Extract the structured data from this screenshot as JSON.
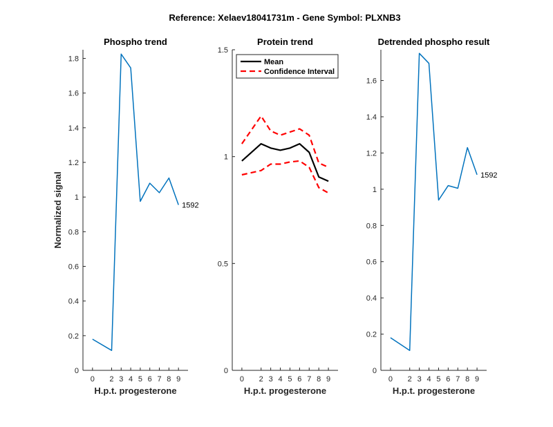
{
  "figure": {
    "suptitle": "Reference:  Xelaev18041731m - Gene Symbol:  PLXNB3"
  },
  "colors": {
    "phospho_line": "#0072BD",
    "mean_line": "#000000",
    "ci_line": "#FF0000",
    "axis": "#262626"
  },
  "chart_data": [
    {
      "type": "line",
      "title": "Phospho trend",
      "xlabel": "H.p.t. progesterone",
      "ylabel": "Normalized signal",
      "x": [
        0,
        2,
        3,
        4,
        5,
        6,
        7,
        8,
        9
      ],
      "xticks": [
        0,
        2,
        3,
        4,
        5,
        6,
        7,
        8,
        9
      ],
      "xlim": [
        -1,
        10
      ],
      "ylim": [
        0,
        1.85
      ],
      "yticks": [
        0,
        0.2,
        0.4,
        0.6,
        0.8,
        1,
        1.2,
        1.4,
        1.6,
        1.8
      ],
      "ytick_labels": [
        "0",
        "0.2",
        "0.4",
        "0.6",
        "0.8",
        "1",
        "1.2",
        "1.4",
        "1.6",
        "1.8"
      ],
      "series": [
        {
          "values": [
            0.18,
            0.115,
            1.825,
            1.745,
            0.975,
            1.08,
            1.025,
            1.11,
            0.955
          ],
          "color": "#0072BD",
          "style": "solid"
        }
      ],
      "end_label": "1592",
      "grid": false
    },
    {
      "type": "line",
      "title": "Protein trend",
      "xlabel": "H.p.t. progesterone",
      "ylabel": "",
      "x": [
        0,
        2,
        3,
        4,
        5,
        6,
        7,
        8,
        9
      ],
      "xticks": [
        0,
        2,
        3,
        4,
        5,
        6,
        7,
        8,
        9
      ],
      "xlim": [
        -1,
        10
      ],
      "ylim": [
        0,
        1.5
      ],
      "yticks": [
        0,
        0.5,
        1,
        1.5
      ],
      "ytick_labels": [
        "0",
        "0.5",
        "1",
        "1.5"
      ],
      "series": [
        {
          "name": "Mean",
          "values": [
            0.98,
            1.06,
            1.04,
            1.03,
            1.04,
            1.06,
            1.02,
            0.905,
            0.885
          ],
          "color": "#000000",
          "style": "solid"
        },
        {
          "name": "Confidence Interval",
          "values": [
            1.06,
            1.19,
            1.12,
            1.1,
            1.115,
            1.13,
            1.1,
            0.97,
            0.95
          ],
          "color": "#FF0000",
          "style": "dashed"
        },
        {
          "name": "",
          "values": [
            0.915,
            0.935,
            0.965,
            0.965,
            0.975,
            0.98,
            0.95,
            0.855,
            0.83
          ],
          "color": "#FF0000",
          "style": "dashed"
        }
      ],
      "legend": [
        "Mean",
        "Confidence Interval"
      ],
      "legend_position": "top-right",
      "grid": false
    },
    {
      "type": "line",
      "title": "Detrended phospho result",
      "xlabel": "H.p.t. progesterone",
      "ylabel": "",
      "x": [
        0,
        2,
        3,
        4,
        5,
        6,
        7,
        8,
        9
      ],
      "xticks": [
        0,
        2,
        3,
        4,
        5,
        6,
        7,
        8,
        9
      ],
      "xlim": [
        -1,
        10
      ],
      "ylim": [
        0,
        1.77
      ],
      "yticks": [
        0,
        0.2,
        0.4,
        0.6,
        0.8,
        1,
        1.2,
        1.4,
        1.6
      ],
      "ytick_labels": [
        "0",
        "0.2",
        "0.4",
        "0.6",
        "0.8",
        "1",
        "1.2",
        "1.4",
        "1.6"
      ],
      "series": [
        {
          "values": [
            0.18,
            0.11,
            1.75,
            1.695,
            0.94,
            1.02,
            1.005,
            1.23,
            1.08
          ],
          "color": "#0072BD",
          "style": "solid"
        }
      ],
      "end_label": "1592",
      "grid": false
    }
  ]
}
